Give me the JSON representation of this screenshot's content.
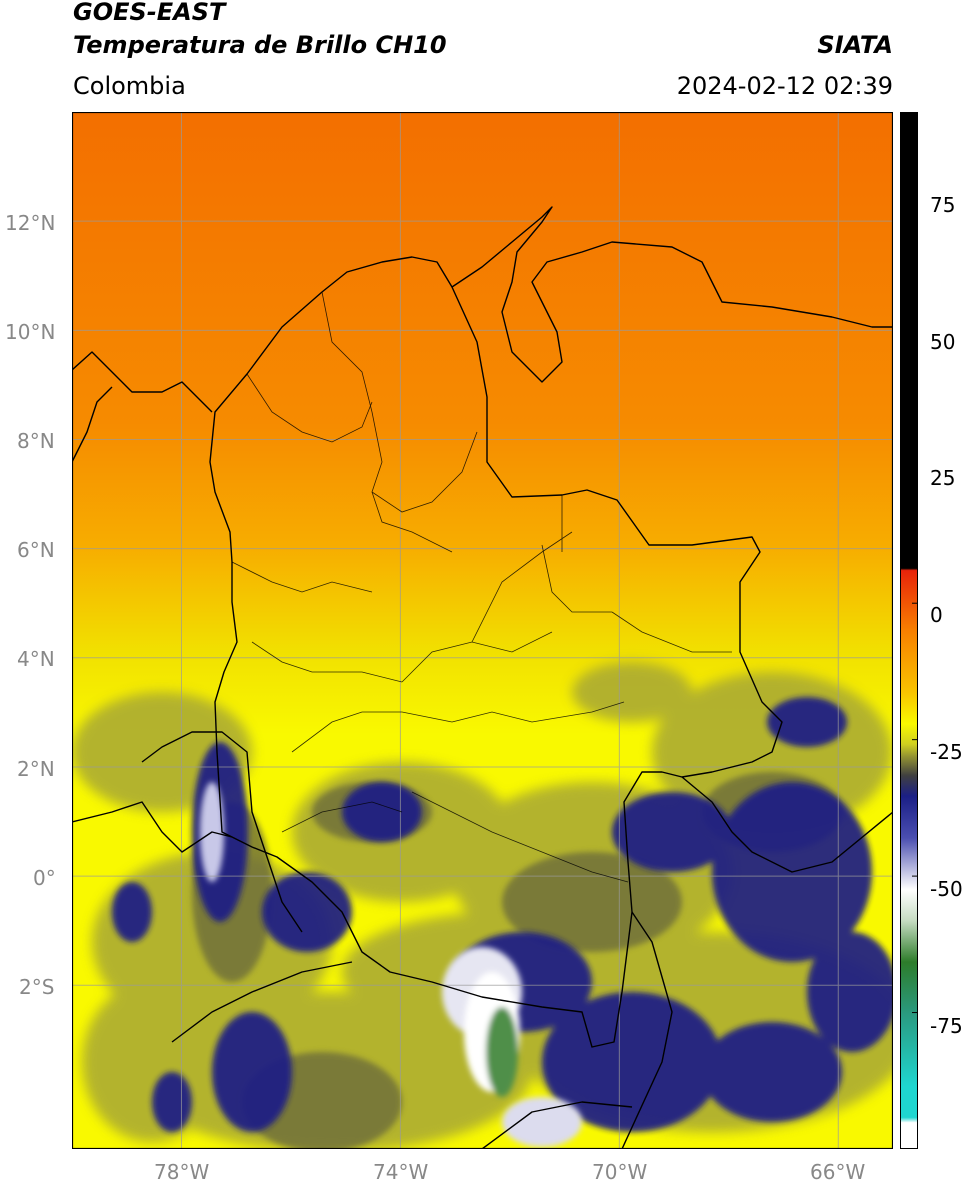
{
  "header": {
    "title_line1": "GOES-EAST",
    "title_line2": "Temperatura de Brillo CH10",
    "source": "SIATA",
    "region": "Colombia",
    "datetime": "2024-02-12 02:39"
  },
  "map": {
    "extent": {
      "lon_min": -80,
      "lon_max": -65,
      "lat_min": -5,
      "lat_max": 14
    },
    "lat_ticks": [
      {
        "value": 12,
        "label": "12°N"
      },
      {
        "value": 10,
        "label": "10°N"
      },
      {
        "value": 8,
        "label": "8°N"
      },
      {
        "value": 6,
        "label": "6°N"
      },
      {
        "value": 4,
        "label": "4°N"
      },
      {
        "value": 2,
        "label": "2°N"
      },
      {
        "value": 0,
        "label": "0°"
      },
      {
        "value": -2,
        "label": "2°S"
      }
    ],
    "lon_ticks": [
      {
        "value": -78,
        "label": "78°W"
      },
      {
        "value": -74,
        "label": "74°W"
      },
      {
        "value": -70,
        "label": "70°W"
      },
      {
        "value": -66,
        "label": "66°W"
      }
    ],
    "grid": true
  },
  "colorbar": {
    "range": [
      -100,
      90
    ],
    "ticks": [
      {
        "value": 75,
        "label": "75"
      },
      {
        "value": 50,
        "label": "50"
      },
      {
        "value": 25,
        "label": "25"
      },
      {
        "value": 0,
        "label": "0"
      },
      {
        "value": -25,
        "label": "-25"
      },
      {
        "value": -50,
        "label": "-50"
      },
      {
        "value": -75,
        "label": "-75"
      }
    ],
    "colors": {
      "black": "#000000",
      "red": "#e8230a",
      "orange": "#f77f00",
      "yellow": "#f9f900",
      "olive": "#9a9a30",
      "navy": "#1b1f86",
      "white": "#ffffff",
      "green": "#2d7c2a",
      "cyan": "#1fd6d0"
    }
  }
}
